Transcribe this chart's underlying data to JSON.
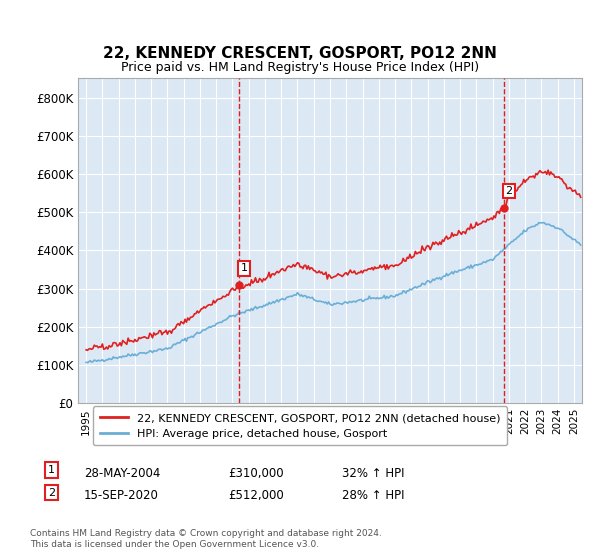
{
  "title": "22, KENNEDY CRESCENT, GOSPORT, PO12 2NN",
  "subtitle": "Price paid vs. HM Land Registry's House Price Index (HPI)",
  "background_color": "#dce9f5",
  "plot_bg_color": "#dce9f5",
  "ylabel_ticks": [
    "£0",
    "£100K",
    "£200K",
    "£300K",
    "£400K",
    "£500K",
    "£600K",
    "£700K",
    "£800K"
  ],
  "ytick_values": [
    0,
    100000,
    200000,
    300000,
    400000,
    500000,
    600000,
    700000,
    800000
  ],
  "ylim": [
    0,
    850000
  ],
  "xlim_start": 1995.0,
  "xlim_end": 2025.5,
  "transaction1": {
    "date_x": 2004.4,
    "price": 310000,
    "label": "1",
    "date_str": "28-MAY-2004",
    "pct": "32% ↑ HPI"
  },
  "transaction2": {
    "date_x": 2020.7,
    "price": 512000,
    "label": "2",
    "date_str": "15-SEP-2020",
    "pct": "28% ↑ HPI"
  },
  "hpi_color": "#6baed6",
  "price_color": "#e02020",
  "dashed_color": "#e02020",
  "legend_label_price": "22, KENNEDY CRESCENT, GOSPORT, PO12 2NN (detached house)",
  "legend_label_hpi": "HPI: Average price, detached house, Gosport",
  "footer": "Contains HM Land Registry data © Crown copyright and database right 2024.\nThis data is licensed under the Open Government Licence v3.0.",
  "xtick_years": [
    1995,
    1996,
    1997,
    1998,
    1999,
    2000,
    2001,
    2002,
    2003,
    2004,
    2005,
    2006,
    2007,
    2008,
    2009,
    2010,
    2011,
    2012,
    2013,
    2014,
    2015,
    2016,
    2017,
    2018,
    2019,
    2020,
    2021,
    2022,
    2023,
    2024,
    2025
  ]
}
